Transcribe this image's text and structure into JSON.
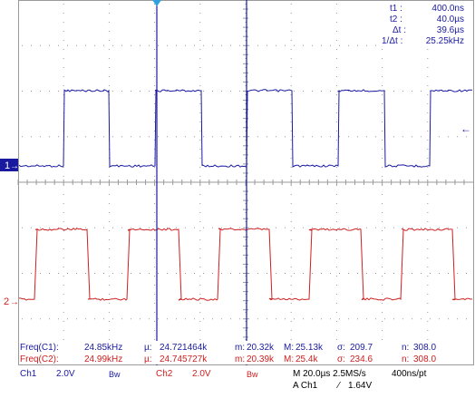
{
  "cursor_readout": {
    "t1_label": "t1 :",
    "t1_value": "400.0ns",
    "t2_label": "t2 :",
    "t2_value": "40.0µs",
    "dt_label": "Δt :",
    "dt_value": "39.6µs",
    "inv_dt_label": "1/Δt :",
    "inv_dt_value": "25.25kHz"
  },
  "markers": {
    "ch1": "1",
    "ch2": "2",
    "ch1_arrow": "→",
    "ch2_arrow": "→",
    "trigger_arrow": "←"
  },
  "measurements": {
    "row1": {
      "label": "Freq(C1):",
      "value": "24.85kHz",
      "mean_label": "µ:",
      "mean": "24.721464k",
      "min_label": "m:",
      "min": "20.32k",
      "max_label": "M:",
      "max": "25.13k",
      "sd_label": "σ:",
      "sd": "209.7",
      "n_label": "n:",
      "n": "308.0"
    },
    "row2": {
      "label": "Freq(C2):",
      "value": "24.99kHz",
      "mean_label": "µ:",
      "mean": "24.745727k",
      "min_label": "m:",
      "min": "20.39k",
      "max_label": "M:",
      "max": "25.4k",
      "sd_label": "σ:",
      "sd": "234.6",
      "n_label": "n:",
      "n": "308.0"
    }
  },
  "status": {
    "ch1_label": "Ch1",
    "ch1_scale": "2.0V",
    "ch1_bw": "Bw",
    "ch2_label": "Ch2",
    "ch2_scale": "2.0V",
    "ch2_bw": "Bw",
    "timebase": "M 20.0µs 2.5MS/s",
    "record": "400ns/pt",
    "trigger_source": "A  Ch1",
    "trigger_slope": "⁄",
    "trigger_level": "1.64V"
  },
  "colors": {
    "ch1": "#1a1aa0",
    "ch2": "#cc2020",
    "grid": "#9a9a9a",
    "cursor": "#1a1aa0",
    "text": "#1a1aa0",
    "black": "#000000"
  }
}
